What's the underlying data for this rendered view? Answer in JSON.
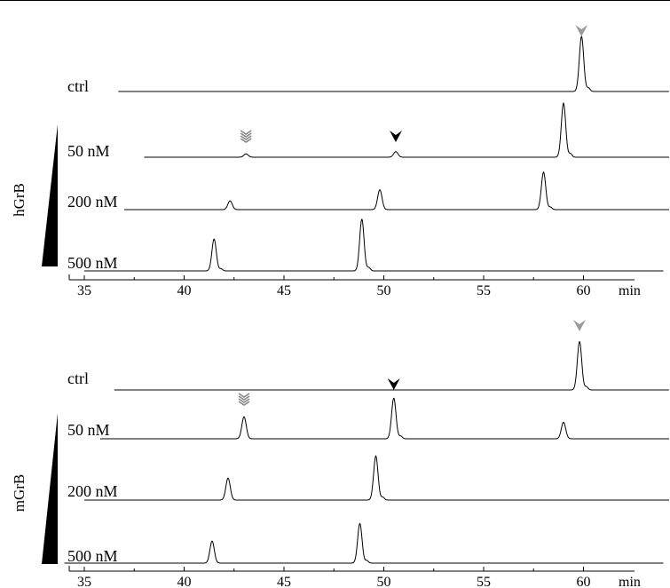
{
  "chart_data": [
    {
      "type": "line",
      "group_label": "hGrB",
      "x_unit": "min",
      "xlim": [
        34,
        66
      ],
      "ticks": [
        "35",
        "40",
        "45",
        "50",
        "55",
        "60"
      ],
      "series": [
        {
          "name": "ctrl",
          "x_start": 36.7,
          "x_end": 66.0,
          "peaks": [
            {
              "x": 59.9,
              "height": 1.0
            }
          ]
        },
        {
          "name": "50 nM",
          "x_start": 38.0,
          "x_end": 65.3,
          "peaks": [
            {
              "x": 43.1,
              "height": 0.06
            },
            {
              "x": 50.6,
              "height": 0.1
            },
            {
              "x": 59.0,
              "height": 0.98
            }
          ]
        },
        {
          "name": "200 nM",
          "x_start": 37.0,
          "x_end": 64.5,
          "peaks": [
            {
              "x": 42.3,
              "height": 0.16
            },
            {
              "x": 49.8,
              "height": 0.36
            },
            {
              "x": 58.0,
              "height": 0.68
            }
          ]
        },
        {
          "name": "500 nM",
          "x_start": 35.0,
          "x_end": 64.0,
          "peaks": [
            {
              "x": 41.5,
              "height": 0.58
            },
            {
              "x": 48.9,
              "height": 0.94
            }
          ]
        }
      ],
      "markers": [
        {
          "x": 59.9,
          "series": "ctrl",
          "color": "#999999",
          "style": "solid"
        },
        {
          "x": 43.1,
          "series": "50 nM",
          "color": "#888888",
          "style": "striped"
        },
        {
          "x": 50.6,
          "series": "50 nM",
          "color": "#000000",
          "style": "solid"
        }
      ]
    },
    {
      "type": "line",
      "group_label": "mGrB",
      "x_unit": "min",
      "xlim": [
        34,
        66
      ],
      "ticks": [
        "35",
        "40",
        "45",
        "50",
        "55",
        "60"
      ],
      "series": [
        {
          "name": "ctrl",
          "x_start": 36.5,
          "x_end": 66.0,
          "peaks": [
            {
              "x": 59.8,
              "height": 0.88
            }
          ]
        },
        {
          "name": "50 nM",
          "x_start": 35.8,
          "x_end": 65.5,
          "peaks": [
            {
              "x": 43.0,
              "height": 0.4
            },
            {
              "x": 50.5,
              "height": 0.74
            },
            {
              "x": 59.0,
              "height": 0.3
            }
          ]
        },
        {
          "name": "200 nM",
          "x_start": 35.0,
          "x_end": 64.5,
          "peaks": [
            {
              "x": 42.2,
              "height": 0.4
            },
            {
              "x": 49.6,
              "height": 0.8
            }
          ]
        },
        {
          "name": "500 nM",
          "x_start": 34.0,
          "x_end": 64.0,
          "peaks": [
            {
              "x": 41.4,
              "height": 0.4
            },
            {
              "x": 48.8,
              "height": 0.72
            }
          ]
        }
      ],
      "markers": [
        {
          "x": 59.8,
          "series": "ctrl",
          "color": "#999999",
          "style": "solid"
        },
        {
          "x": 43.0,
          "series": "50 nM",
          "color": "#888888",
          "style": "striped"
        },
        {
          "x": 50.5,
          "series": "50 nM",
          "color": "#000000",
          "style": "solid"
        }
      ]
    }
  ]
}
